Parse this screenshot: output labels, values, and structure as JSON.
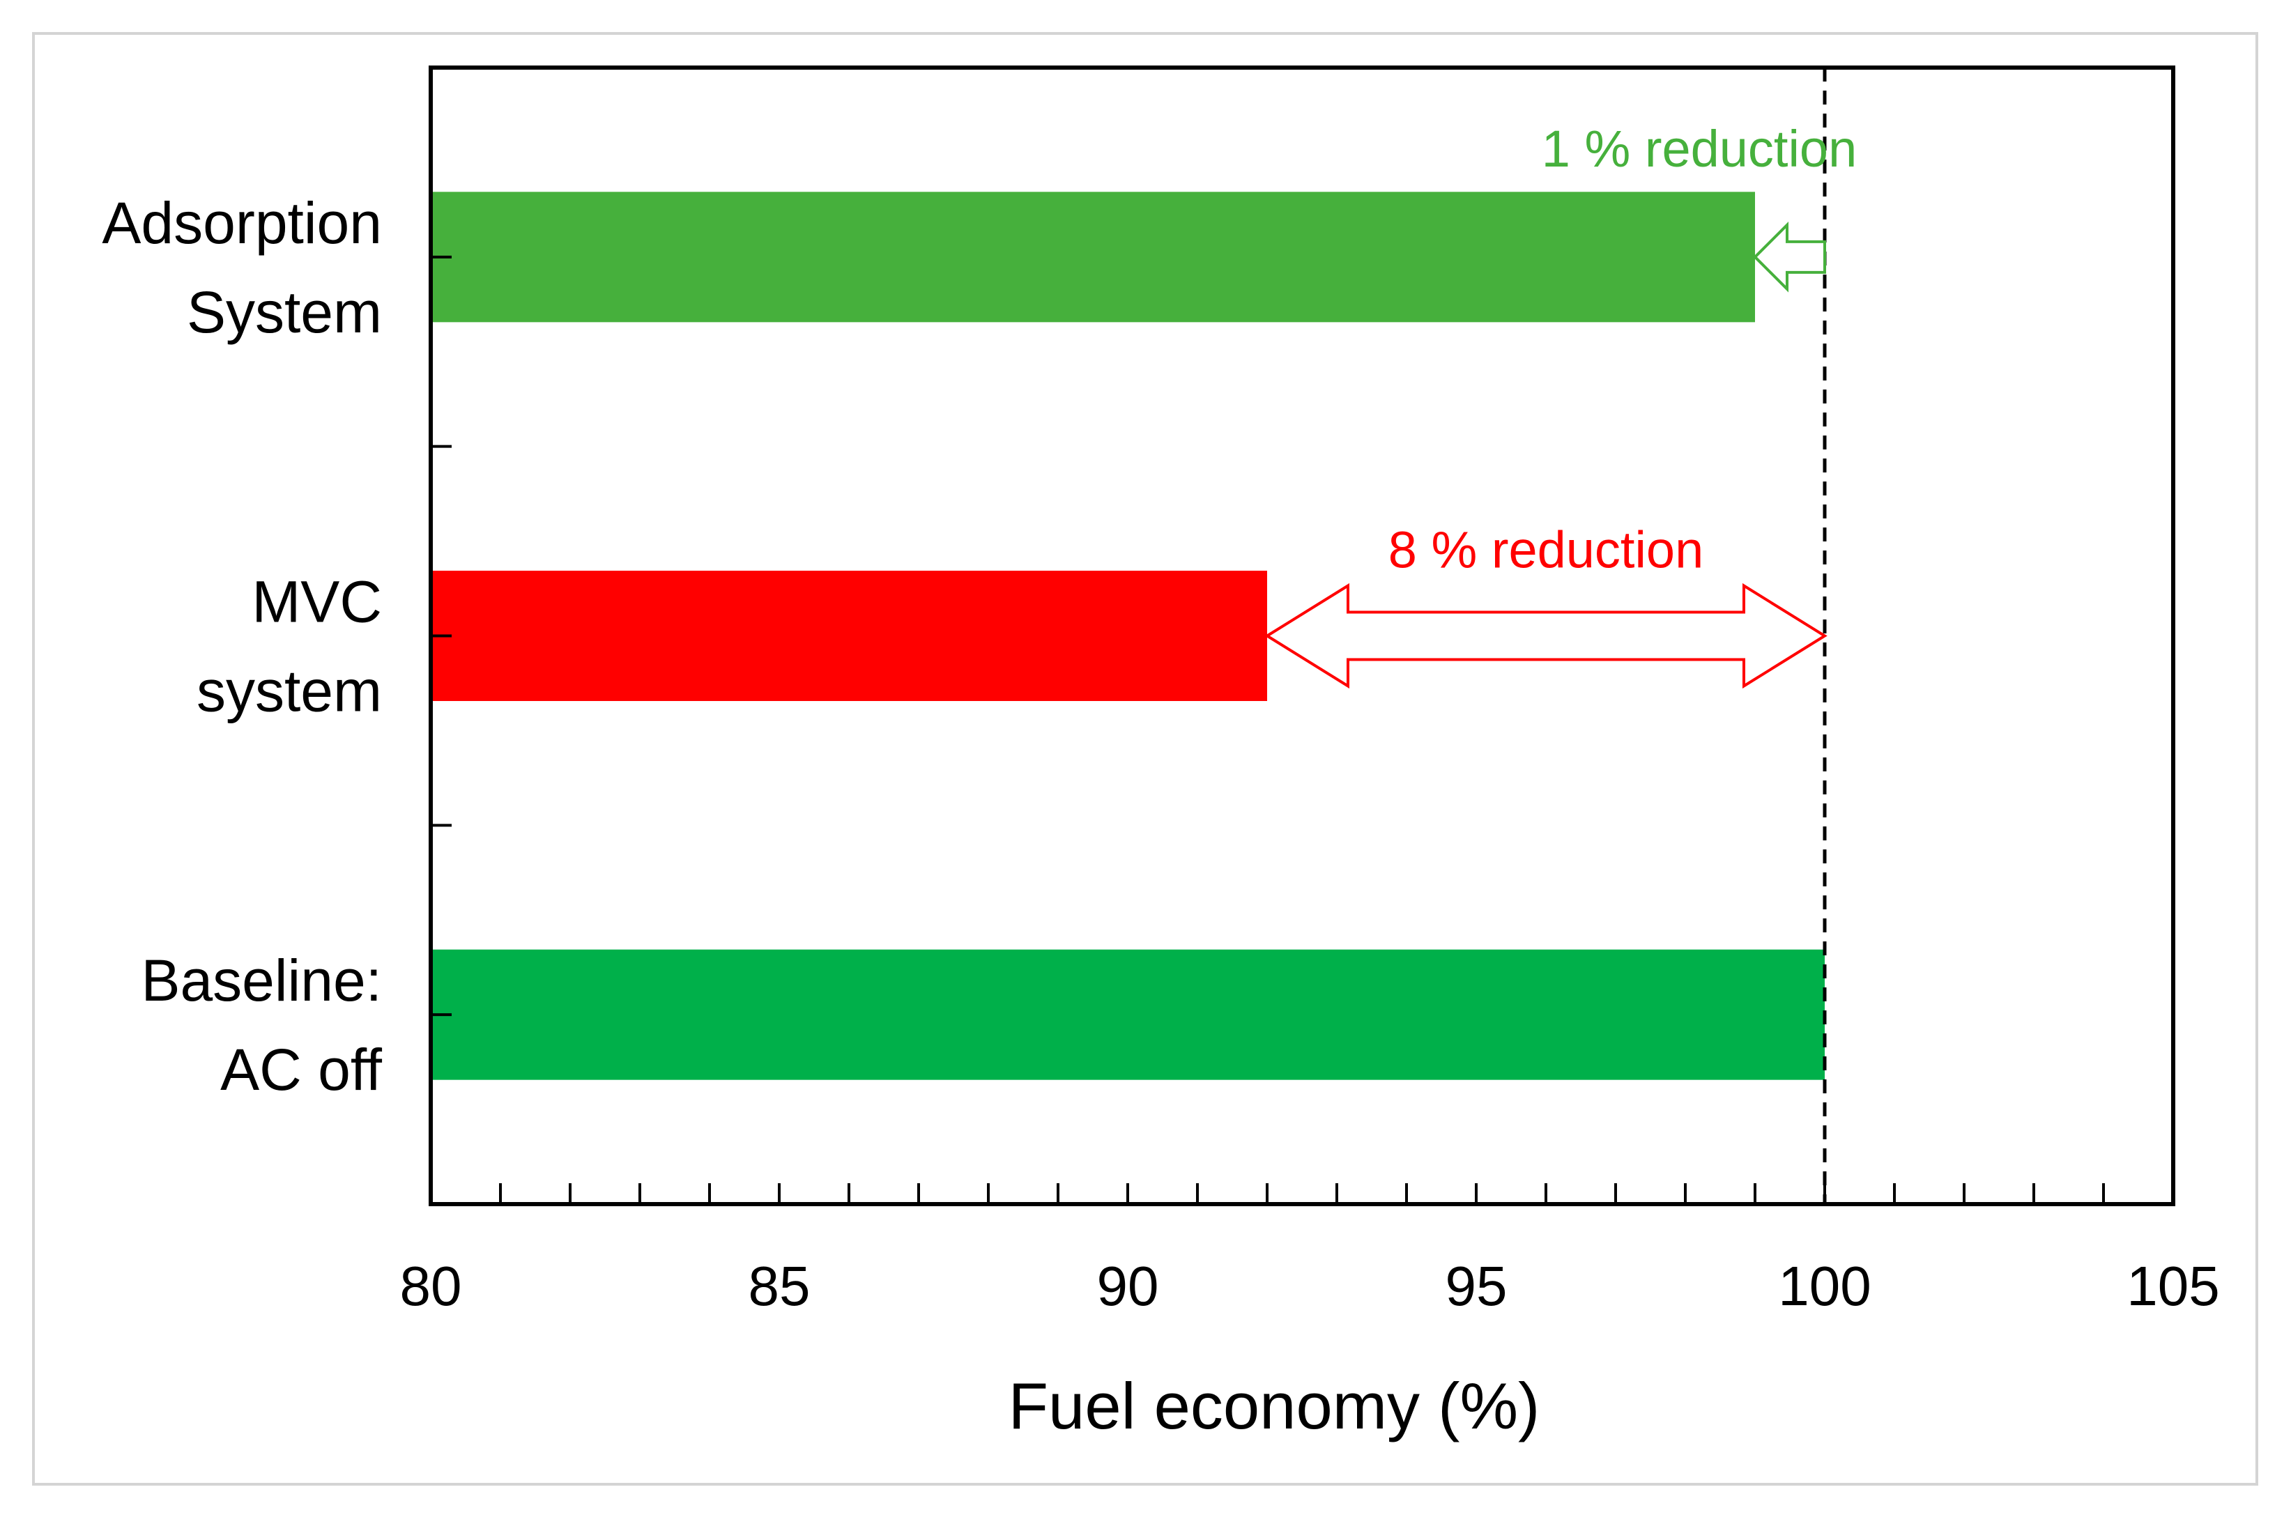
{
  "chart_data": {
    "type": "bar",
    "orientation": "horizontal",
    "title": "",
    "xlabel": "Fuel economy (%)",
    "ylabel": "",
    "xlim": [
      80,
      105
    ],
    "x_major_ticks": [
      80,
      85,
      90,
      95,
      100,
      105
    ],
    "x_minor_step": 1,
    "grid": false,
    "reference_line": {
      "x": 100,
      "style": "dashed"
    },
    "categories": [
      {
        "label_lines": [
          "Adsorption",
          "System"
        ],
        "value": 99,
        "color": "#46B03C"
      },
      {
        "label_lines": [
          "MVC",
          "system"
        ],
        "value": 92,
        "color": "#FF0000"
      },
      {
        "label_lines": [
          "Baseline:",
          "AC off"
        ],
        "value": 100,
        "color": "#00B04A"
      }
    ],
    "annotations": [
      {
        "text": "1 % reduction",
        "category_index": 0,
        "from": 100,
        "to": 99,
        "color": "#46B03C",
        "arrow": "single"
      },
      {
        "text": "8 % reduction",
        "category_index": 1,
        "from": 92,
        "to": 100,
        "color": "#FF0000",
        "arrow": "double"
      }
    ]
  }
}
